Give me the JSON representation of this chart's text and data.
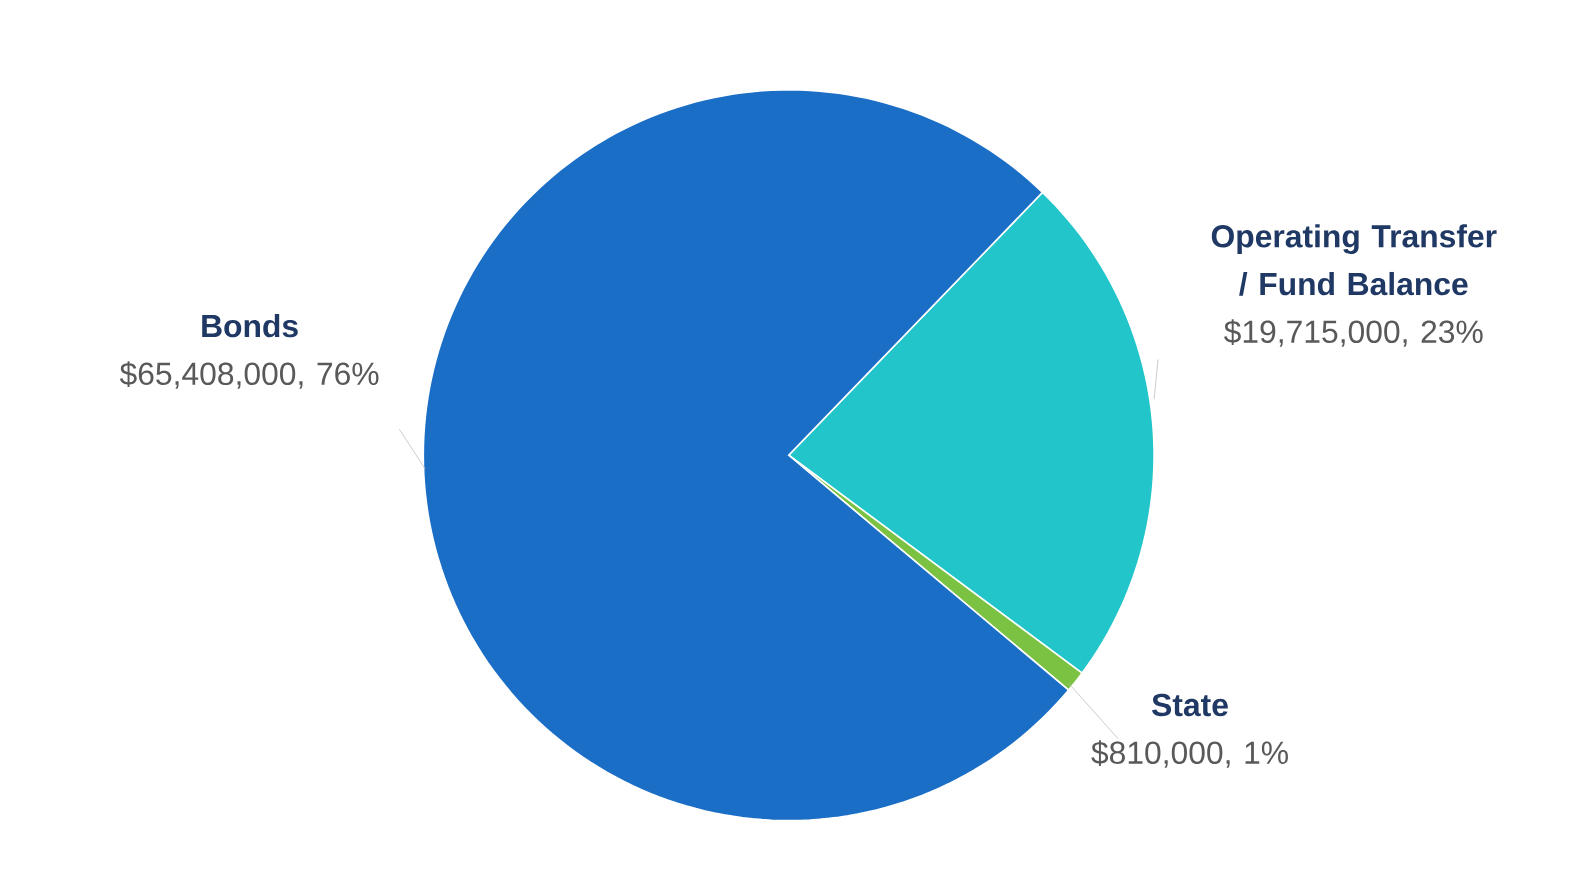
{
  "chart_data": {
    "type": "pie",
    "categories": [
      "Operating Transfer / Fund Balance",
      "State",
      "Bonds"
    ],
    "values": [
      19715000,
      810000,
      65408000
    ],
    "colors": [
      "#22c5c9",
      "#7cc242",
      "#1b6ec5"
    ],
    "value_labels": [
      "$19,715,000, 23%",
      "$810,000, 1%",
      "$65,408,000, 76%"
    ]
  }
}
